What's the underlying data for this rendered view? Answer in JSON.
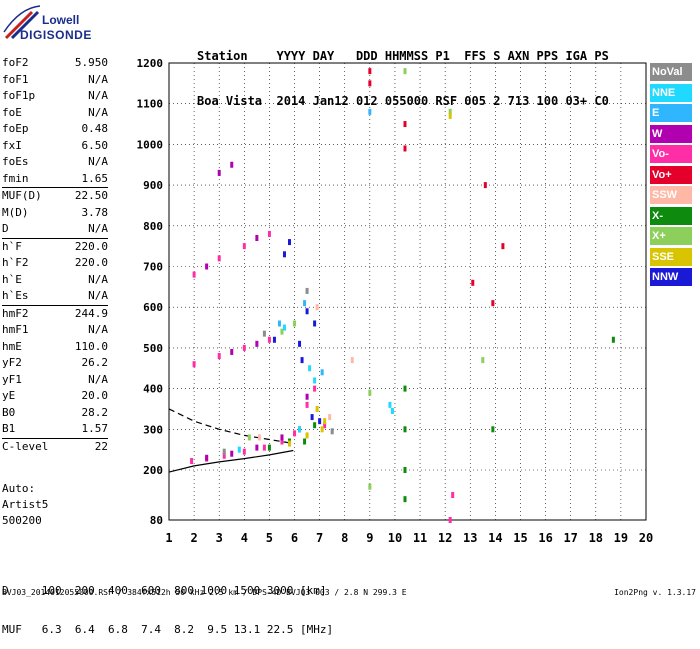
{
  "logo": {
    "line1": "Lowell",
    "line2": "DIGISONDE"
  },
  "header": {
    "line1": "Station    YYYY DAY   DDD HHMMSS P1  FFS S AXN PPS IGA PS",
    "line2": "Boa Vista  2014 Jan12 012 055000 RSF 005 2 713 100 03+ C0"
  },
  "params": [
    {
      "name": "foF2",
      "value": "5.950"
    },
    {
      "name": "foF1",
      "value": "N/A"
    },
    {
      "name": "foF1p",
      "value": "N/A"
    },
    {
      "name": "foE",
      "value": "N/A"
    },
    {
      "name": "foEp",
      "value": "0.48"
    },
    {
      "name": "fxI",
      "value": "6.50"
    },
    {
      "name": "foEs",
      "value": "N/A"
    },
    {
      "name": "fmin",
      "value": "1.65"
    },
    {
      "name": "MUF(D)",
      "value": "22.50",
      "sep": true
    },
    {
      "name": "M(D)",
      "value": "3.78"
    },
    {
      "name": "D",
      "value": "N/A"
    },
    {
      "name": "h`F",
      "value": "220.0",
      "sep": true
    },
    {
      "name": "h`F2",
      "value": "220.0"
    },
    {
      "name": "h`E",
      "value": "N/A"
    },
    {
      "name": "h`Es",
      "value": "N/A"
    },
    {
      "name": "hmF2",
      "value": "244.9",
      "sep": true
    },
    {
      "name": "hmF1",
      "value": "N/A"
    },
    {
      "name": "hmE",
      "value": "110.0"
    },
    {
      "name": "yF2",
      "value": "26.2"
    },
    {
      "name": "yF1",
      "value": "N/A"
    },
    {
      "name": "yE",
      "value": "20.0"
    },
    {
      "name": "B0",
      "value": "28.2"
    },
    {
      "name": "B1",
      "value": "1.57"
    },
    {
      "name": "C-level",
      "value": "22",
      "sep": true
    }
  ],
  "auto": {
    "line1": "Auto:",
    "line2": "Artist5",
    "line3": "500200"
  },
  "legend": [
    {
      "label": "NoVal",
      "color": "#8c8c8c"
    },
    {
      "label": "NNE",
      "color": "#1fd9ff"
    },
    {
      "label": "E",
      "color": "#2fb6ff"
    },
    {
      "label": "W",
      "color": "#b000b0"
    },
    {
      "label": "Vo-",
      "color": "#ff2ea6"
    },
    {
      "label": "Vo+",
      "color": "#e4002b"
    },
    {
      "label": "SSW",
      "color": "#ffb8a6"
    },
    {
      "label": "X-",
      "color": "#0e8a0e"
    },
    {
      "label": "X+",
      "color": "#8ccf5a"
    },
    {
      "label": "SSE",
      "color": "#d8c400"
    },
    {
      "label": "NNW",
      "color": "#1a1ad6"
    }
  ],
  "chart_data": {
    "type": "scatter",
    "title": "",
    "xlabel": "",
    "ylabel": "",
    "xlim": [
      1,
      20
    ],
    "ylim": [
      80,
      1200
    ],
    "x_ticks": [
      "1",
      "2",
      "3",
      "4",
      "5",
      "6",
      "7",
      "8",
      "9",
      "10",
      "11",
      "12",
      "13",
      "14",
      "15",
      "16",
      "17",
      "18",
      "19",
      "20"
    ],
    "y_ticks": [
      "80",
      "200",
      "300",
      "400",
      "500",
      "600",
      "700",
      "800",
      "900",
      "1000",
      "1100",
      "1200"
    ],
    "grid": true,
    "series": [
      {
        "name": "NNW",
        "color": "#1a1ad6",
        "points": [
          [
            5.8,
            760
          ],
          [
            5.6,
            730
          ],
          [
            6.8,
            560
          ],
          [
            6.5,
            590
          ],
          [
            6.3,
            470
          ],
          [
            6.2,
            510
          ],
          [
            6.7,
            330
          ],
          [
            7.0,
            320
          ],
          [
            5.2,
            520
          ]
        ]
      },
      {
        "name": "Vo-",
        "color": "#ff2ea6",
        "points": [
          [
            1.9,
            222
          ],
          [
            2.5,
            228
          ],
          [
            3.2,
            235
          ],
          [
            4.0,
            245
          ],
          [
            4.8,
            255
          ],
          [
            5.5,
            270
          ],
          [
            6.0,
            290
          ],
          [
            2.0,
            460
          ],
          [
            3.0,
            480
          ],
          [
            4.0,
            500
          ],
          [
            5.0,
            520
          ],
          [
            2.0,
            680
          ],
          [
            3.0,
            720
          ],
          [
            4.0,
            750
          ],
          [
            5.0,
            780
          ],
          [
            6.8,
            400
          ],
          [
            6.5,
            360
          ],
          [
            7.2,
            310
          ],
          [
            12.2,
            80
          ],
          [
            12.3,
            140
          ]
        ]
      },
      {
        "name": "W",
        "color": "#b000b0",
        "points": [
          [
            2.5,
            230
          ],
          [
            3.5,
            240
          ],
          [
            4.5,
            255
          ],
          [
            5.5,
            280
          ],
          [
            6.2,
            300
          ],
          [
            6.5,
            380
          ],
          [
            3.5,
            490
          ],
          [
            4.5,
            510
          ],
          [
            3.0,
            930
          ],
          [
            3.5,
            950
          ],
          [
            2.5,
            700
          ],
          [
            4.5,
            770
          ]
        ]
      },
      {
        "name": "Vo+",
        "color": "#e4002b",
        "points": [
          [
            9.0,
            1150
          ],
          [
            9.0,
            1180
          ],
          [
            10.4,
            1050
          ],
          [
            10.4,
            990
          ],
          [
            13.6,
            900
          ],
          [
            14.3,
            750
          ],
          [
            13.9,
            610
          ],
          [
            13.1,
            660
          ]
        ]
      },
      {
        "name": "X-",
        "color": "#0e8a0e",
        "points": [
          [
            5.0,
            255
          ],
          [
            5.8,
            270
          ],
          [
            6.4,
            270
          ],
          [
            10.4,
            300
          ],
          [
            10.4,
            400
          ],
          [
            10.4,
            200
          ],
          [
            10.4,
            130
          ],
          [
            6.8,
            310
          ],
          [
            13.9,
            300
          ],
          [
            18.7,
            520
          ]
        ]
      },
      {
        "name": "X+",
        "color": "#8ccf5a",
        "points": [
          [
            9.0,
            160
          ],
          [
            9.0,
            390
          ],
          [
            10.4,
            1180
          ],
          [
            12.2,
            1080
          ],
          [
            6.0,
            560
          ],
          [
            5.5,
            540
          ],
          [
            4.2,
            280
          ],
          [
            13.5,
            470
          ]
        ]
      },
      {
        "name": "SSE",
        "color": "#d8c400",
        "points": [
          [
            7.1,
            300
          ],
          [
            7.2,
            320
          ],
          [
            6.9,
            350
          ],
          [
            12.2,
            1070
          ],
          [
            5.8,
            265
          ],
          [
            6.5,
            285
          ]
        ]
      },
      {
        "name": "NNE",
        "color": "#1fd9ff",
        "points": [
          [
            9.8,
            360
          ],
          [
            9.9,
            345
          ],
          [
            6.8,
            420
          ],
          [
            6.6,
            450
          ],
          [
            6.2,
            300
          ],
          [
            5.6,
            550
          ],
          [
            3.8,
            250
          ]
        ]
      },
      {
        "name": "E",
        "color": "#2fb6ff",
        "points": [
          [
            9.0,
            1080
          ],
          [
            6.4,
            610
          ],
          [
            7.1,
            440
          ],
          [
            5.4,
            560
          ]
        ]
      },
      {
        "name": "SSW",
        "color": "#ffb8a6",
        "points": [
          [
            7.4,
            330
          ],
          [
            6.9,
            600
          ],
          [
            4.6,
            280
          ],
          [
            8.3,
            470
          ]
        ]
      },
      {
        "name": "NoVal",
        "color": "#8c8c8c",
        "points": [
          [
            7.5,
            295
          ],
          [
            6.5,
            640
          ],
          [
            4.8,
            535
          ],
          [
            3.2,
            245
          ]
        ]
      }
    ],
    "curves": [
      {
        "style": "solid",
        "points": [
          [
            1,
            195
          ],
          [
            2,
            210
          ],
          [
            3,
            220
          ],
          [
            4,
            228
          ],
          [
            5,
            237
          ],
          [
            5.95,
            248
          ]
        ]
      },
      {
        "style": "dashed",
        "points": [
          [
            1,
            350
          ],
          [
            2,
            320
          ],
          [
            3,
            300
          ],
          [
            4,
            285
          ],
          [
            5,
            275
          ],
          [
            5.95,
            265
          ]
        ]
      }
    ]
  },
  "bottom": {
    "line1": "D     100  200  400  600  800 1000 1500 3000 [km]",
    "line2": "MUF   6.3  6.4  6.8  7.4  8.2  9.5 13.1 22.5 [MHz]"
  },
  "footer": {
    "left": "BVJ03_2014012055000.RSF / 384fx512h 50 kHz 2.5 km / DPS-4D BVJ03 003 / 2.8 N 299.3 E",
    "right": "Ion2Png v. 1.3.17"
  }
}
